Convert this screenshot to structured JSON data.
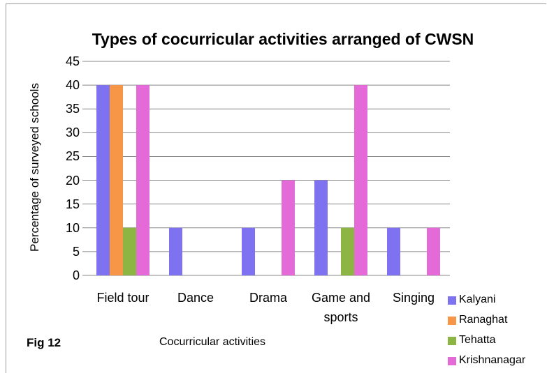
{
  "chart_data": {
    "type": "bar",
    "title": "Types of cocurricular activities arranged of CWSN",
    "x_label": "Cocurricular activities",
    "y_label": "Percentage of surveyed schools",
    "annotation": "Fig 12",
    "categories": [
      "Field tour",
      "Dance",
      "Drama",
      "Game and sports",
      "Singing"
    ],
    "series": [
      {
        "name": "Kalyani",
        "color": "#7f72f0",
        "values": [
          40,
          10,
          10,
          20,
          10
        ]
      },
      {
        "name": "Ranaghat",
        "color": "#f79646",
        "values": [
          40,
          0,
          0,
          0,
          0
        ]
      },
      {
        "name": "Tehatta",
        "color": "#8db543",
        "values": [
          10,
          0,
          0,
          10,
          0
        ]
      },
      {
        "name": "Krishnanagar",
        "color": "#e46ad8",
        "values": [
          40,
          0,
          20,
          40,
          10
        ]
      }
    ],
    "ylim": [
      0,
      45
    ],
    "yticks": [
      0,
      5,
      10,
      15,
      20,
      25,
      30,
      35,
      40,
      45
    ],
    "grid": true
  }
}
